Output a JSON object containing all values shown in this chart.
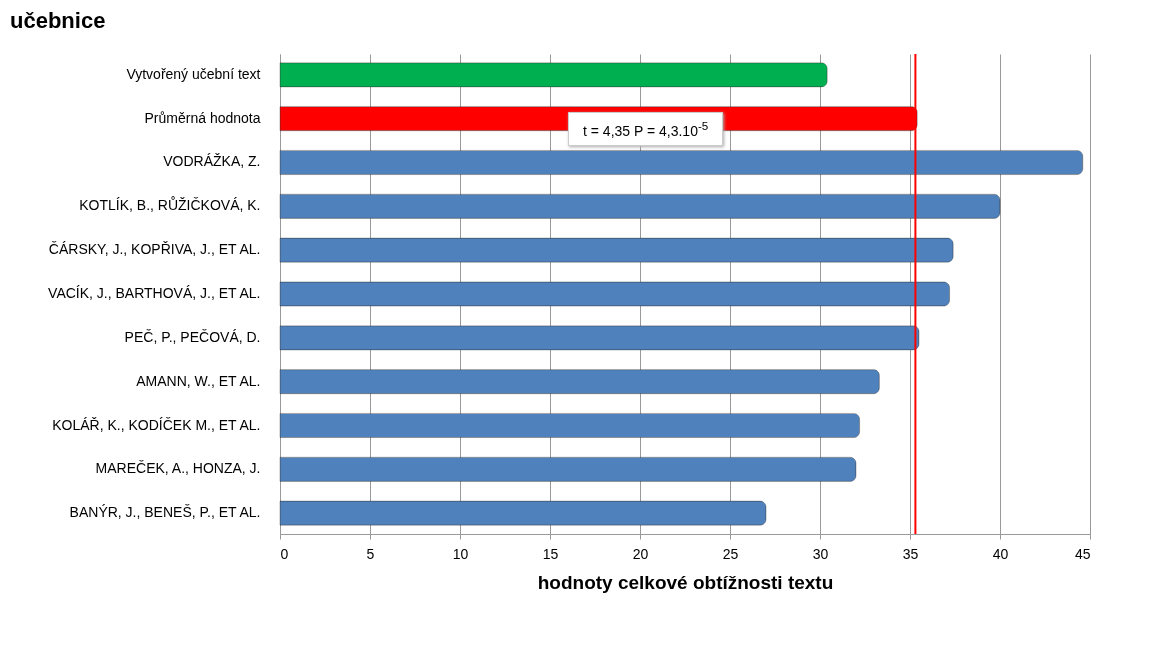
{
  "chart_data": {
    "type": "bar",
    "orientation": "horizontal",
    "title": "učebnice",
    "xlabel": "hodnoty celkové obtížnosti  textu",
    "categories": [
      "Vytvořený učební  text",
      "Průměrná hodnota",
      "VODRÁŽKA, Z.",
      "KOTLÍK, B., RŮŽIČKOVÁ, K.",
      "ČÁRSKY, J., KOPŘIVA, J., ET AL.",
      "VACÍK, J., BARTHOVÁ, J., ET AL.",
      "PEČ, P., PEČOVÁ, D.",
      "AMANN, W., ET AL.",
      "KOLÁŘ, K., KODÍČEK M., ET AL.",
      "MAREČEK, A., HONZA, J.",
      "BANÝR, J., BENEŠ, P., ET AL."
    ],
    "values": [
      30.4,
      35.4,
      44.6,
      40.0,
      37.4,
      37.2,
      35.5,
      33.3,
      32.2,
      32.0,
      27.0
    ],
    "colors": [
      "#00b050",
      "#ff0000",
      "#4f81bd",
      "#4f81bd",
      "#4f81bd",
      "#4f81bd",
      "#4f81bd",
      "#4f81bd",
      "#4f81bd",
      "#4f81bd",
      "#4f81bd"
    ],
    "xlim": [
      0,
      45
    ],
    "xticks": [
      0,
      5,
      10,
      15,
      20,
      25,
      30,
      35,
      40,
      45
    ],
    "grid": "x",
    "ref_lines": [
      {
        "axis": "x",
        "value": 35.3,
        "color": "#ff0000"
      }
    ],
    "annotations": [
      "t = 4,35 P = 4,3.10$^{-5}$"
    ]
  }
}
